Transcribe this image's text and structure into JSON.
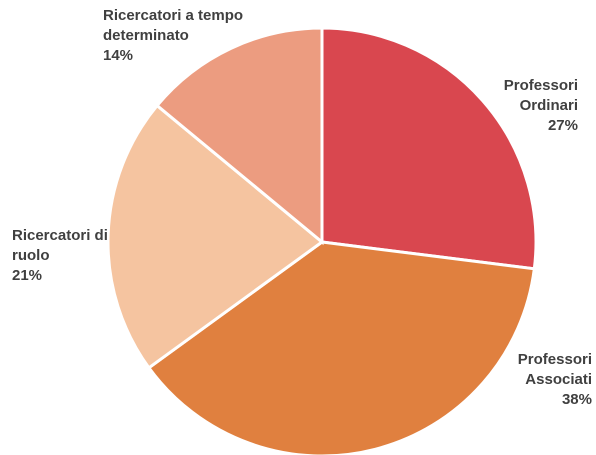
{
  "chart_data": {
    "type": "pie",
    "categories": [
      "Professori Ordinari",
      "Professori Associati",
      "Ricercatori di ruolo",
      "Ricercatori a tempo determinato"
    ],
    "values": [
      27,
      38,
      21,
      14
    ],
    "value_labels": [
      "27%",
      "38%",
      "21%",
      "14%"
    ],
    "colors": [
      "#d9474f",
      "#e0803f",
      "#f5c4a0",
      "#ec9c80"
    ]
  }
}
